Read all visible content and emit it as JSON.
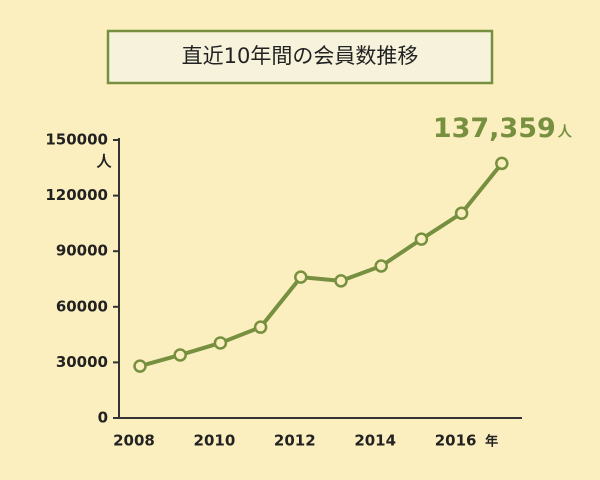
{
  "chart_data": {
    "type": "line",
    "title": "直近10年間の会員数推移",
    "categories": [
      "2008",
      null,
      "2010",
      null,
      "2012",
      null,
      "2014",
      null,
      "2016",
      null
    ],
    "x_unit": "年",
    "y_unit": "人",
    "values": [
      28000,
      34000,
      40500,
      49000,
      76000,
      74000,
      82000,
      96500,
      110500,
      137359
    ],
    "value_labels": [
      null,
      null,
      null,
      null,
      null,
      null,
      null,
      null,
      null,
      "137,359"
    ],
    "color": "#76903f",
    "ylim": [
      0,
      150000
    ],
    "yticks": [
      0,
      30000,
      60000,
      90000,
      120000,
      150000
    ]
  }
}
